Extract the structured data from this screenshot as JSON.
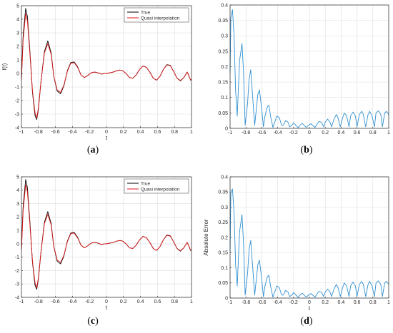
{
  "captions": {
    "a": {
      "open": "(",
      "letter": "a",
      "close": ")"
    },
    "b": {
      "open": "(",
      "letter": "b",
      "close": ")"
    },
    "c": {
      "open": "(",
      "letter": "c",
      "close": ")"
    },
    "d": {
      "open": "(",
      "letter": "d",
      "close": ")"
    }
  },
  "colors": {
    "true_curve": "#000000",
    "quasi_curve": "#e0191b",
    "error_curve": "#2f8fd1",
    "grid": "#dcdcdc",
    "axis": "#262626"
  },
  "chart_data": [
    {
      "id": "a",
      "type": "line",
      "xlabel": "t",
      "ylabel": "f(t)",
      "xlim": [
        -1,
        1
      ],
      "ylim": [
        -4,
        5
      ],
      "xticks": [
        "-1",
        "-0.8",
        "-0.6",
        "-0.4",
        "-0.2",
        "0",
        "0.2",
        "0.4",
        "0.6",
        "0.8",
        "1"
      ],
      "yticks": [
        "-4",
        "-3",
        "-2",
        "-1",
        "0",
        "1",
        "2",
        "3",
        "4",
        "5"
      ],
      "grid": true,
      "legend": "top-right",
      "series": [
        {
          "name": "True",
          "color": "#000000",
          "x": [
            -1,
            -0.98,
            -0.95,
            -0.93,
            -0.9,
            -0.87,
            -0.84,
            -0.82,
            -0.8,
            -0.77,
            -0.73,
            -0.69,
            -0.65,
            -0.62,
            -0.58,
            -0.54,
            -0.5,
            -0.46,
            -0.42,
            -0.38,
            -0.34,
            -0.3,
            -0.26,
            -0.22,
            -0.18,
            -0.14,
            -0.1,
            -0.06,
            -0.02,
            0,
            0.04,
            0.08,
            0.12,
            0.16,
            0.19,
            0.23,
            0.27,
            0.31,
            0.35,
            0.39,
            0.43,
            0.47,
            0.51,
            0.55,
            0.59,
            0.63,
            0.67,
            0.71,
            0.75,
            0.79,
            0.83,
            0.87,
            0.91,
            0.95,
            0.99,
            1
          ],
          "y": [
            -0.4,
            2.8,
            4.8,
            4.2,
            1.6,
            -1.4,
            -3.1,
            -3.4,
            -2.6,
            -0.6,
            1.6,
            2.4,
            1.5,
            -0.2,
            -1.3,
            -1.5,
            -0.9,
            0.2,
            0.8,
            0.85,
            0.5,
            -0.1,
            -0.3,
            -0.15,
            0.05,
            0.1,
            0.05,
            -0.05,
            0,
            0,
            0.05,
            0.1,
            0.2,
            0.25,
            0.2,
            0.0,
            -0.3,
            -0.35,
            -0.1,
            0.3,
            0.55,
            0.45,
            0.1,
            -0.35,
            -0.5,
            -0.2,
            0.3,
            0.65,
            0.6,
            0.15,
            -0.35,
            -0.55,
            -0.3,
            0.1,
            -0.5,
            -0.45
          ]
        },
        {
          "name": "Quasi interpolation",
          "color": "#e0191b",
          "x": [
            -1,
            -0.98,
            -0.95,
            -0.93,
            -0.9,
            -0.87,
            -0.84,
            -0.82,
            -0.8,
            -0.77,
            -0.73,
            -0.69,
            -0.65,
            -0.62,
            -0.58,
            -0.54,
            -0.5,
            -0.46,
            -0.42,
            -0.38,
            -0.34,
            -0.3,
            -0.26,
            -0.22,
            -0.18,
            -0.14,
            -0.1,
            -0.06,
            -0.02,
            0,
            0.04,
            0.08,
            0.12,
            0.16,
            0.19,
            0.23,
            0.27,
            0.31,
            0.35,
            0.39,
            0.43,
            0.47,
            0.51,
            0.55,
            0.59,
            0.63,
            0.67,
            0.71,
            0.75,
            0.79,
            0.83,
            0.87,
            0.91,
            0.95,
            0.99,
            1
          ],
          "y": [
            -0.5,
            2.5,
            4.4,
            3.9,
            1.4,
            -1.3,
            -2.9,
            -3.3,
            -2.5,
            -0.6,
            1.5,
            2.2,
            1.4,
            -0.2,
            -1.2,
            -1.4,
            -0.85,
            0.15,
            0.75,
            0.8,
            0.45,
            -0.1,
            -0.3,
            -0.15,
            0.05,
            0.1,
            0.05,
            -0.05,
            0,
            0,
            0.05,
            0.1,
            0.2,
            0.25,
            0.2,
            0.0,
            -0.3,
            -0.35,
            -0.1,
            0.3,
            0.55,
            0.45,
            0.1,
            -0.35,
            -0.5,
            -0.2,
            0.3,
            0.62,
            0.58,
            0.15,
            -0.35,
            -0.52,
            -0.3,
            0.1,
            -0.48,
            -0.45
          ]
        }
      ]
    },
    {
      "id": "b",
      "type": "line",
      "xlabel": "",
      "ylabel": "",
      "xlim": [
        -1,
        1
      ],
      "ylim": [
        0,
        0.4
      ],
      "xticks": [
        "-1",
        "-0.8",
        "-0.6",
        "-0.4",
        "-0.2",
        "0",
        "0.2",
        "0.4",
        "0.6",
        "0.8",
        "1"
      ],
      "yticks": [
        "0",
        "0.05",
        "0.1",
        "0.15",
        "0.2",
        "0.25",
        "0.3",
        "0.35",
        "0.4"
      ],
      "grid": true,
      "series": [
        {
          "name": "",
          "color": "#2f8fd1",
          "x": [
            -1,
            -0.99,
            -0.97,
            -0.95,
            -0.93,
            -0.91,
            -0.88,
            -0.85,
            -0.83,
            -0.81,
            -0.78,
            -0.76,
            -0.74,
            -0.72,
            -0.69,
            -0.67,
            -0.65,
            -0.63,
            -0.6,
            -0.58,
            -0.56,
            -0.53,
            -0.51,
            -0.49,
            -0.46,
            -0.43,
            -0.41,
            -0.38,
            -0.35,
            -0.33,
            -0.3,
            -0.27,
            -0.25,
            -0.22,
            -0.2,
            -0.17,
            -0.14,
            -0.12,
            -0.09,
            -0.06,
            -0.04,
            -0.01,
            0.02,
            0.04,
            0.07,
            0.1,
            0.12,
            0.15,
            0.18,
            0.2,
            0.23,
            0.26,
            0.28,
            0.31,
            0.34,
            0.36,
            0.39,
            0.42,
            0.44,
            0.47,
            0.5,
            0.52,
            0.55,
            0.58,
            0.6,
            0.63,
            0.66,
            0.68,
            0.71,
            0.74,
            0.76,
            0.79,
            0.82,
            0.84,
            0.87,
            0.9,
            0.92,
            0.95,
            0.97,
            1
          ],
          "y": [
            0.18,
            0.36,
            0.385,
            0.3,
            0.12,
            0.04,
            0.22,
            0.275,
            0.18,
            0.01,
            0.08,
            0.16,
            0.19,
            0.12,
            0.01,
            0.06,
            0.11,
            0.125,
            0.06,
            0.005,
            0.04,
            0.07,
            0.075,
            0.04,
            0.003,
            0.025,
            0.04,
            0.035,
            0.01,
            0.01,
            0.025,
            0.02,
            0.005,
            0.01,
            0.018,
            0.01,
            0.002,
            0.01,
            0.016,
            0.008,
            0.003,
            0.01,
            0.015,
            0.01,
            0.003,
            0.015,
            0.022,
            0.02,
            0.005,
            0.02,
            0.03,
            0.02,
            0.005,
            0.03,
            0.045,
            0.035,
            0.005,
            0.035,
            0.05,
            0.04,
            0.005,
            0.04,
            0.053,
            0.04,
            0.005,
            0.045,
            0.055,
            0.045,
            0.005,
            0.045,
            0.055,
            0.04,
            0.005,
            0.05,
            0.057,
            0.045,
            0.005,
            0.05,
            0.055,
            0.045
          ]
        }
      ]
    },
    {
      "id": "c",
      "type": "line",
      "xlabel": "t",
      "ylabel": "",
      "xlim": [
        -1,
        1
      ],
      "ylim": [
        -4,
        5
      ],
      "xticks": [
        "-1",
        "-0.8",
        "-0.6",
        "-0.4",
        "-0.2",
        "0",
        "0.2",
        "0.4",
        "0.6",
        "0.8",
        "1"
      ],
      "yticks": [
        "-4",
        "-3",
        "-2",
        "-1",
        "0",
        "1",
        "2",
        "3",
        "4",
        "5"
      ],
      "grid": true,
      "legend": "top-right",
      "series": [
        {
          "name": "True",
          "color": "#000000",
          "x": [
            -1,
            -0.98,
            -0.95,
            -0.93,
            -0.9,
            -0.87,
            -0.84,
            -0.82,
            -0.8,
            -0.77,
            -0.73,
            -0.69,
            -0.65,
            -0.62,
            -0.58,
            -0.54,
            -0.5,
            -0.46,
            -0.42,
            -0.38,
            -0.34,
            -0.3,
            -0.26,
            -0.22,
            -0.18,
            -0.14,
            -0.1,
            -0.06,
            -0.02,
            0,
            0.04,
            0.08,
            0.12,
            0.16,
            0.19,
            0.23,
            0.27,
            0.31,
            0.35,
            0.39,
            0.43,
            0.47,
            0.51,
            0.55,
            0.59,
            0.63,
            0.67,
            0.71,
            0.75,
            0.79,
            0.83,
            0.87,
            0.91,
            0.95,
            0.99,
            1
          ],
          "y": [
            -0.4,
            2.8,
            4.8,
            4.2,
            1.6,
            -1.4,
            -3.1,
            -3.4,
            -2.6,
            -0.6,
            1.6,
            2.4,
            1.5,
            -0.2,
            -1.3,
            -1.5,
            -0.9,
            0.2,
            0.8,
            0.85,
            0.5,
            -0.1,
            -0.3,
            -0.15,
            0.05,
            0.1,
            0.05,
            -0.05,
            0,
            0,
            0.05,
            0.1,
            0.2,
            0.25,
            0.2,
            0.0,
            -0.3,
            -0.35,
            -0.1,
            0.3,
            0.55,
            0.45,
            0.1,
            -0.35,
            -0.5,
            -0.2,
            0.3,
            0.65,
            0.6,
            0.15,
            -0.35,
            -0.55,
            -0.3,
            0.1,
            -0.5,
            -0.45
          ]
        },
        {
          "name": "Quasi interpolation",
          "color": "#e0191b",
          "x": [
            -1,
            -0.98,
            -0.95,
            -0.93,
            -0.9,
            -0.87,
            -0.84,
            -0.82,
            -0.8,
            -0.77,
            -0.73,
            -0.69,
            -0.65,
            -0.62,
            -0.58,
            -0.54,
            -0.5,
            -0.46,
            -0.42,
            -0.38,
            -0.34,
            -0.3,
            -0.26,
            -0.22,
            -0.18,
            -0.14,
            -0.1,
            -0.06,
            -0.02,
            0,
            0.04,
            0.08,
            0.12,
            0.16,
            0.19,
            0.23,
            0.27,
            0.31,
            0.35,
            0.39,
            0.43,
            0.47,
            0.51,
            0.55,
            0.59,
            0.63,
            0.67,
            0.71,
            0.75,
            0.79,
            0.83,
            0.87,
            0.91,
            0.95,
            0.99,
            1
          ],
          "y": [
            -0.5,
            2.5,
            4.4,
            3.9,
            1.4,
            -1.3,
            -2.9,
            -3.3,
            -2.5,
            -0.6,
            1.5,
            2.2,
            1.4,
            -0.2,
            -1.2,
            -1.4,
            -0.85,
            0.15,
            0.75,
            0.8,
            0.45,
            -0.1,
            -0.3,
            -0.15,
            0.05,
            0.1,
            0.05,
            -0.05,
            0,
            0,
            0.05,
            0.1,
            0.2,
            0.25,
            0.2,
            0.0,
            -0.3,
            -0.35,
            -0.1,
            0.3,
            0.55,
            0.45,
            0.1,
            -0.35,
            -0.5,
            -0.2,
            0.3,
            0.62,
            0.58,
            0.15,
            -0.35,
            -0.52,
            -0.3,
            0.1,
            -0.48,
            -0.45
          ]
        }
      ]
    },
    {
      "id": "d",
      "type": "line",
      "xlabel": "t",
      "ylabel": "Absolute Error",
      "xlim": [
        -1,
        1
      ],
      "ylim": [
        0,
        0.4
      ],
      "xticks": [
        "-1",
        "-0.8",
        "-0.6",
        "-0.4",
        "-0.2",
        "0",
        "0.2",
        "0.4",
        "0.6",
        "0.8",
        "1"
      ],
      "yticks": [
        "0",
        "0.05",
        "0.1",
        "0.15",
        "0.2",
        "0.25",
        "0.3",
        "0.35",
        "0.4"
      ],
      "grid": true,
      "series": [
        {
          "name": "",
          "color": "#2f8fd1",
          "x": [
            -1,
            -0.99,
            -0.97,
            -0.95,
            -0.93,
            -0.91,
            -0.88,
            -0.85,
            -0.83,
            -0.81,
            -0.78,
            -0.76,
            -0.74,
            -0.72,
            -0.69,
            -0.67,
            -0.65,
            -0.63,
            -0.6,
            -0.58,
            -0.56,
            -0.53,
            -0.51,
            -0.49,
            -0.46,
            -0.43,
            -0.41,
            -0.38,
            -0.35,
            -0.33,
            -0.3,
            -0.27,
            -0.25,
            -0.22,
            -0.2,
            -0.17,
            -0.14,
            -0.12,
            -0.09,
            -0.06,
            -0.04,
            -0.01,
            0.02,
            0.04,
            0.07,
            0.1,
            0.12,
            0.15,
            0.18,
            0.2,
            0.23,
            0.26,
            0.28,
            0.31,
            0.34,
            0.36,
            0.39,
            0.42,
            0.44,
            0.47,
            0.5,
            0.52,
            0.55,
            0.58,
            0.6,
            0.63,
            0.66,
            0.68,
            0.71,
            0.74,
            0.76,
            0.79,
            0.82,
            0.84,
            0.87,
            0.9,
            0.92,
            0.95,
            0.97,
            1
          ],
          "y": [
            0.15,
            0.35,
            0.36,
            0.28,
            0.11,
            0.04,
            0.22,
            0.275,
            0.18,
            0.01,
            0.08,
            0.16,
            0.19,
            0.12,
            0.01,
            0.06,
            0.11,
            0.125,
            0.06,
            0.005,
            0.04,
            0.07,
            0.075,
            0.04,
            0.003,
            0.025,
            0.04,
            0.035,
            0.01,
            0.01,
            0.025,
            0.02,
            0.005,
            0.01,
            0.018,
            0.01,
            0.002,
            0.01,
            0.016,
            0.008,
            0.003,
            0.01,
            0.015,
            0.01,
            0.003,
            0.015,
            0.022,
            0.02,
            0.005,
            0.02,
            0.03,
            0.02,
            0.005,
            0.03,
            0.045,
            0.035,
            0.005,
            0.035,
            0.05,
            0.04,
            0.005,
            0.04,
            0.053,
            0.04,
            0.005,
            0.045,
            0.055,
            0.045,
            0.005,
            0.045,
            0.055,
            0.04,
            0.005,
            0.05,
            0.057,
            0.045,
            0.005,
            0.05,
            0.055,
            0.045
          ]
        }
      ]
    }
  ]
}
